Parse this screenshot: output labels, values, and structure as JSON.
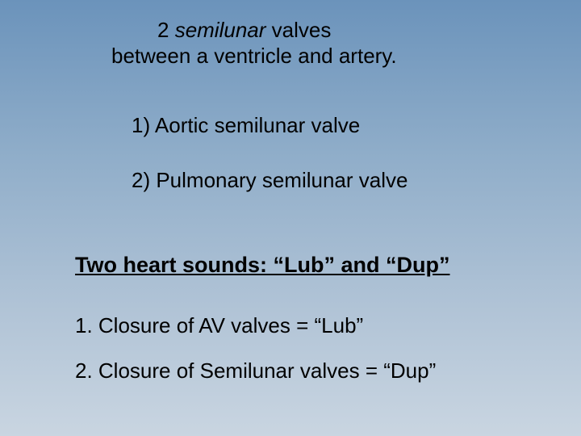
{
  "slide": {
    "background_gradient": [
      "#6b93bb",
      "#8fadc9",
      "#b0c3d6",
      "#c9d5e1"
    ],
    "text_color": "#000000",
    "font_family": "Arial",
    "title": {
      "line1_prefix": "2 ",
      "line1_italic": "semilunar",
      "line1_suffix": " valves",
      "line1_fontsize": 26,
      "line2": "between a ventricle and artery.",
      "line2_fontsize": 26
    },
    "list": {
      "item1": "1) Aortic semilunar valve",
      "item2": "2) Pulmonary semilunar valve",
      "fontsize": 26
    },
    "heading": {
      "text": "Two heart sounds: “Lub” and “Dup”",
      "fontsize": 27,
      "underline": true,
      "bold": true
    },
    "sounds": {
      "item1": "1. Closure of AV valves = “Lub”",
      "item2": "2. Closure of Semilunar valves = “Dup”",
      "fontsize": 26
    }
  }
}
